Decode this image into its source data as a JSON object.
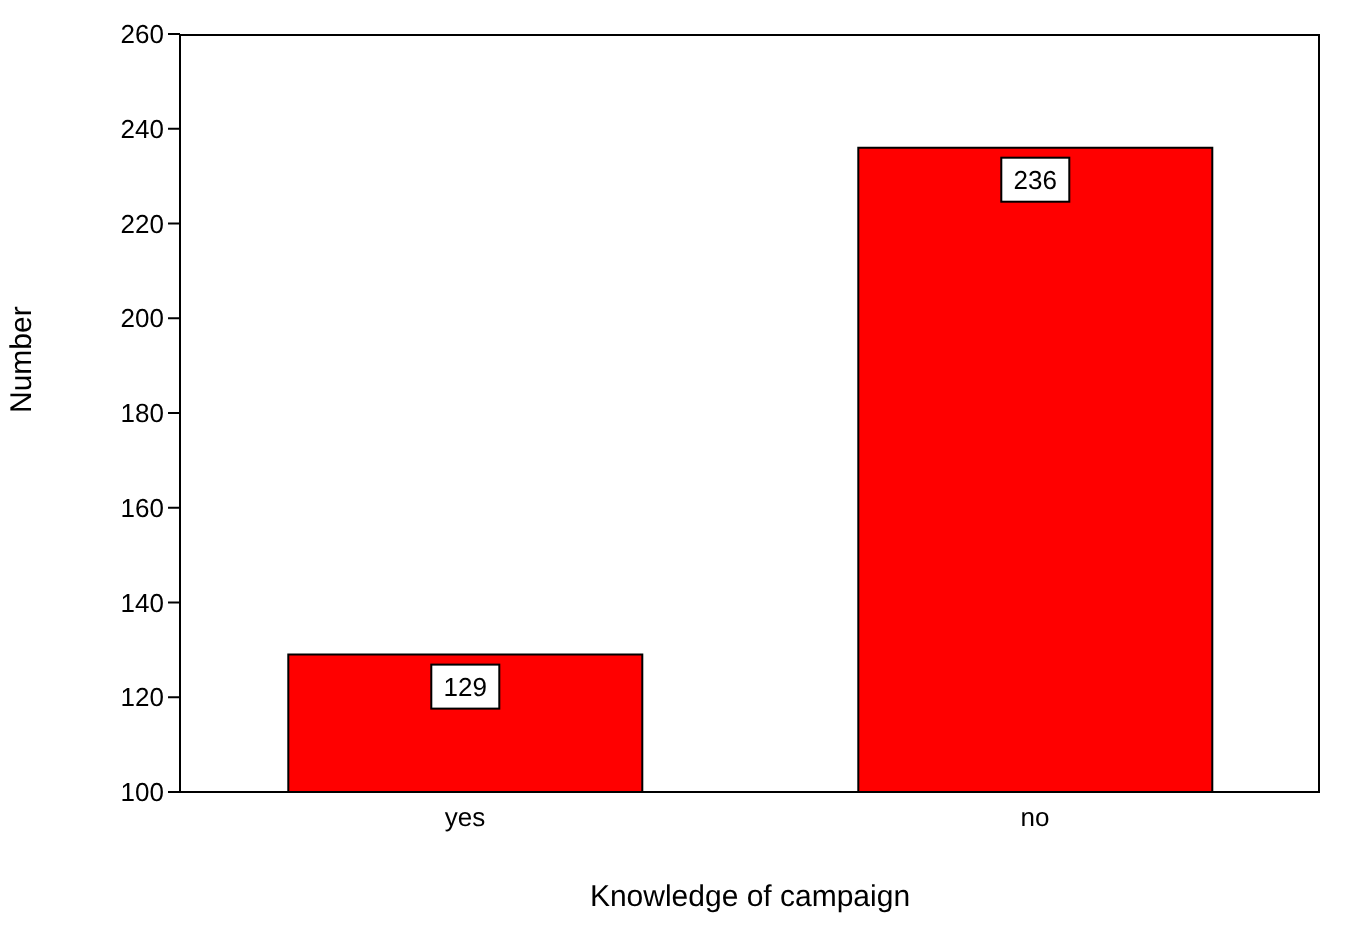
{
  "chart_data": {
    "type": "bar",
    "xlabel": "Knowledge of campaign",
    "ylabel": "Number",
    "categories": [
      "yes",
      "no"
    ],
    "values": [
      129,
      236
    ],
    "color": "#ff0000",
    "ylim": [
      100,
      260
    ],
    "yticks": [
      100,
      120,
      140,
      160,
      180,
      200,
      220,
      240,
      260
    ],
    "data_labels": true,
    "grid": false,
    "legend": false
  }
}
